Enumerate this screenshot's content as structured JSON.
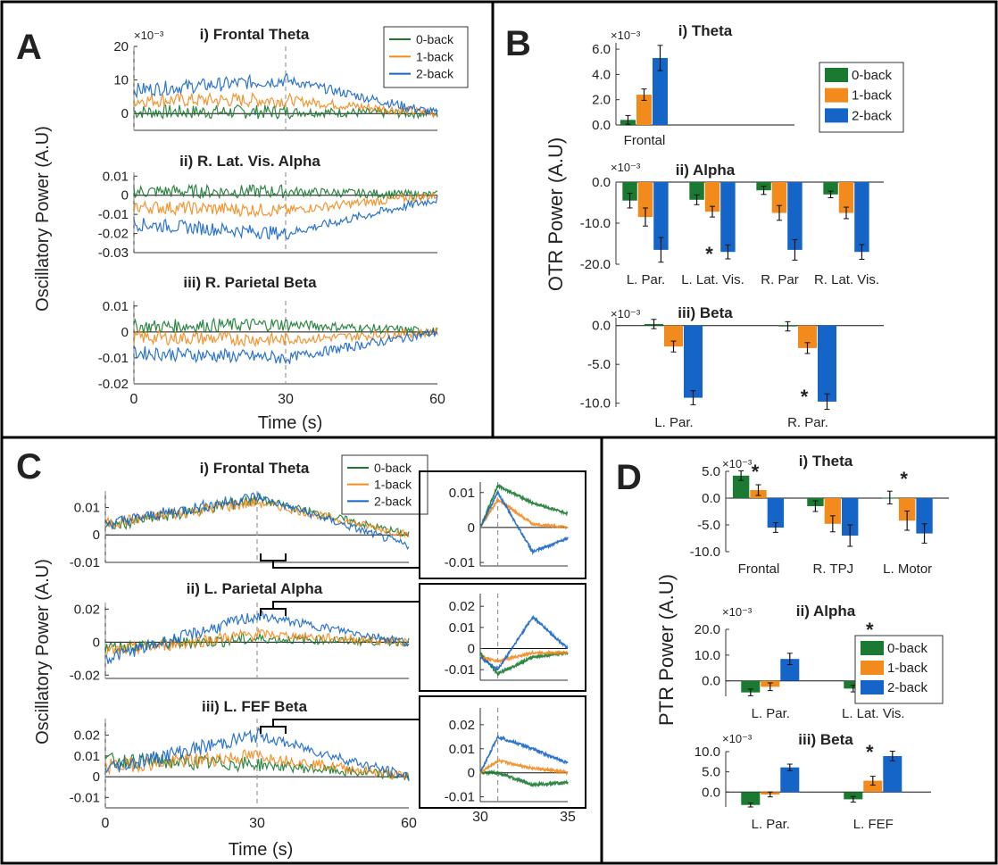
{
  "panels": {
    "A": {
      "letter": "A",
      "xlabel": "Time (s)",
      "ylabel": "Oscillatory Power (A.U)"
    },
    "B": {
      "letter": "B",
      "ylabel": "OTR Power (A.U)"
    },
    "C": {
      "letter": "C",
      "xlabel": "Time (s)",
      "ylabel": "Oscillatory Power (A.U)"
    },
    "D": {
      "letter": "D",
      "ylabel": "PTR Power (A.U)"
    }
  },
  "legend": [
    "0-back",
    "1-back",
    "2-back"
  ],
  "colors": {
    "0-back": "#1a7a32",
    "1-back": "#f28a1c",
    "2-back": "#1565c8"
  },
  "chart_data": [
    {
      "id": "A-i",
      "panel": "A",
      "type": "line",
      "title": "i) Frontal Theta",
      "exponent": "×10⁻³",
      "xlim": [
        0,
        60
      ],
      "ylim": [
        -5,
        20
      ],
      "yticks": [
        "0",
        "10",
        "20"
      ],
      "xticks": [],
      "series": [
        {
          "name": "0-back",
          "values": [
            0.5,
            0.5,
            0
          ]
        },
        {
          "name": "1-back",
          "values": [
            4,
            4,
            0
          ]
        },
        {
          "name": "2-back",
          "values": [
            7,
            10,
            0
          ]
        }
      ],
      "x": [
        0,
        30,
        60
      ]
    },
    {
      "id": "A-ii",
      "panel": "A",
      "type": "line",
      "title": "ii) R. Lat. Vis. Alpha",
      "xlim": [
        0,
        60
      ],
      "ylim": [
        -0.03,
        0.012
      ],
      "yticks": [
        "0.01",
        "0",
        "-0.01",
        "-0.02",
        "-0.03"
      ],
      "xticks": [],
      "series": [
        {
          "name": "0-back",
          "values": [
            0.002,
            0.002,
            0
          ]
        },
        {
          "name": "1-back",
          "values": [
            -0.006,
            -0.008,
            0
          ]
        },
        {
          "name": "2-back",
          "values": [
            -0.015,
            -0.02,
            -0.002
          ]
        }
      ],
      "x": [
        0,
        30,
        60
      ]
    },
    {
      "id": "A-iii",
      "panel": "A",
      "type": "line",
      "title": "iii) R. Parietal Beta",
      "xlim": [
        0,
        60
      ],
      "ylim": [
        -0.02,
        0.012
      ],
      "yticks": [
        "0.01",
        "0",
        "-0.01",
        "-0.02"
      ],
      "xticks": [
        "0",
        "30",
        "60"
      ],
      "series": [
        {
          "name": "0-back",
          "values": [
            0.002,
            0.003,
            0
          ]
        },
        {
          "name": "1-back",
          "values": [
            -0.002,
            -0.003,
            0
          ]
        },
        {
          "name": "2-back",
          "values": [
            -0.008,
            -0.01,
            0
          ]
        }
      ],
      "x": [
        0,
        30,
        60
      ]
    },
    {
      "id": "B-i",
      "panel": "B",
      "type": "bar",
      "title": "i) Theta",
      "exponent": "×10⁻³",
      "categories": [
        "Frontal"
      ],
      "ylim": [
        0,
        6.5
      ],
      "yticks": [
        "6.0",
        "4.0",
        "2.0",
        "0.0"
      ],
      "series": [
        {
          "name": "0-back",
          "values": [
            0.4
          ],
          "err": [
            0.35
          ]
        },
        {
          "name": "1-back",
          "values": [
            2.4
          ],
          "err": [
            0.45
          ]
        },
        {
          "name": "2-back",
          "values": [
            5.3
          ],
          "err": [
            1.0
          ]
        }
      ],
      "sig": [
        1
      ]
    },
    {
      "id": "B-ii",
      "panel": "B",
      "type": "bar",
      "title": "ii) Alpha",
      "exponent": "×10⁻³",
      "categories": [
        "L. Par.",
        "L. Lat. Vis.",
        "R. Par",
        "R. Lat. Vis."
      ],
      "ylim": [
        -20,
        0
      ],
      "yticks": [
        "0.0",
        "-10.0",
        "-20.0"
      ],
      "series": [
        {
          "name": "0-back",
          "values": [
            -4.5,
            -4.3,
            -2.0,
            -3.0
          ],
          "err": [
            1.8,
            1.2,
            1.0,
            0.8
          ]
        },
        {
          "name": "1-back",
          "values": [
            -8.5,
            -7.2,
            -7.5,
            -7.5
          ],
          "err": [
            2.2,
            1.3,
            1.8,
            1.4
          ]
        },
        {
          "name": "2-back",
          "values": [
            -16.5,
            -17.0,
            -16.5,
            -17.0
          ],
          "err": [
            3.0,
            1.7,
            2.5,
            1.8
          ]
        }
      ],
      "sig": [
        1,
        1,
        1,
        1
      ]
    },
    {
      "id": "B-iii",
      "panel": "B",
      "type": "bar",
      "title": "iii) Beta",
      "exponent": "×10⁻³",
      "categories": [
        "L. Par.",
        "R. Par."
      ],
      "ylim": [
        -10.5,
        1
      ],
      "yticks": [
        "0.0",
        "-5.0",
        "-10.0"
      ],
      "series": [
        {
          "name": "0-back",
          "values": [
            0.2,
            -0.1
          ],
          "err": [
            0.6,
            0.6
          ]
        },
        {
          "name": "1-back",
          "values": [
            -2.7,
            -2.9
          ],
          "err": [
            0.7,
            0.7
          ]
        },
        {
          "name": "2-back",
          "values": [
            -9.3,
            -9.8
          ],
          "err": [
            0.9,
            1.0
          ]
        }
      ],
      "sig": [
        1,
        1
      ]
    },
    {
      "id": "C-i",
      "panel": "C",
      "type": "line",
      "title": "i) Frontal Theta",
      "xlim": [
        0,
        60
      ],
      "ylim": [
        -0.01,
        0.016
      ],
      "yticks": [
        "0.01",
        "0",
        "-0.01"
      ],
      "xticks": [],
      "series": [
        {
          "name": "0-back",
          "values": [
            0.003,
            0.013,
            0
          ]
        },
        {
          "name": "1-back",
          "values": [
            0.004,
            0.012,
            0
          ]
        },
        {
          "name": "2-back",
          "values": [
            0.004,
            0.014,
            -0.004
          ]
        }
      ],
      "x": [
        0,
        30,
        60
      ]
    },
    {
      "id": "C-ii",
      "panel": "C",
      "type": "line",
      "title": "ii) L. Parietal Alpha",
      "xlim": [
        0,
        60
      ],
      "ylim": [
        -0.022,
        0.024
      ],
      "yticks": [
        "0.02",
        "0",
        "-0.02"
      ],
      "xticks": [],
      "series": [
        {
          "name": "0-back",
          "values": [
            -0.003,
            0.002,
            0
          ]
        },
        {
          "name": "1-back",
          "values": [
            -0.006,
            0.005,
            0
          ]
        },
        {
          "name": "2-back",
          "values": [
            -0.01,
            0.016,
            0
          ]
        }
      ],
      "x": [
        0,
        30,
        60
      ]
    },
    {
      "id": "C-iii",
      "panel": "C",
      "type": "line",
      "title": "iii) L. FEF Beta",
      "xlim": [
        0,
        60
      ],
      "ylim": [
        -0.015,
        0.028
      ],
      "yticks": [
        "0.02",
        "0.01",
        "0",
        "-0.01"
      ],
      "xticks": [
        "0",
        "30",
        "60"
      ],
      "series": [
        {
          "name": "0-back",
          "values": [
            0.008,
            0.006,
            0
          ]
        },
        {
          "name": "1-back",
          "values": [
            0.005,
            0.01,
            0
          ]
        },
        {
          "name": "2-back",
          "values": [
            0.004,
            0.02,
            0
          ]
        }
      ],
      "x": [
        0,
        30,
        60
      ]
    },
    {
      "id": "C-i-zoom",
      "panel": "C",
      "type": "line",
      "title": "",
      "xlim": [
        30,
        35
      ],
      "ylim": [
        -0.011,
        0.013
      ],
      "yticks": [
        "0.01",
        "0",
        "-0.01"
      ],
      "xticks": [],
      "series": [
        {
          "name": "0-back",
          "values": [
            0.0,
            0.012,
            0.007,
            0.004
          ]
        },
        {
          "name": "1-back",
          "values": [
            0.0,
            0.008,
            0.001,
            0.0
          ]
        },
        {
          "name": "2-back",
          "values": [
            0.0,
            0.01,
            -0.007,
            -0.003
          ]
        }
      ],
      "x": [
        30,
        31,
        33,
        35
      ]
    },
    {
      "id": "C-ii-zoom",
      "panel": "C",
      "type": "line",
      "title": "",
      "xlim": [
        30,
        35
      ],
      "ylim": [
        -0.015,
        0.026
      ],
      "yticks": [
        "0.02",
        "0.01",
        "0",
        "-0.01"
      ],
      "xticks": [],
      "series": [
        {
          "name": "0-back",
          "values": [
            -0.002,
            -0.012,
            -0.004,
            -0.002
          ]
        },
        {
          "name": "1-back",
          "values": [
            -0.004,
            -0.006,
            -0.002,
            -0.002
          ]
        },
        {
          "name": "2-back",
          "values": [
            -0.004,
            -0.01,
            0.015,
            0.0
          ]
        }
      ],
      "x": [
        30,
        31,
        33,
        35
      ]
    },
    {
      "id": "C-iii-zoom",
      "panel": "C",
      "type": "line",
      "title": "",
      "xlim": [
        30,
        35
      ],
      "ylim": [
        -0.012,
        0.027
      ],
      "yticks": [
        "0.02",
        "0.01",
        "0",
        "-0.01"
      ],
      "xticks": [
        "30",
        "35"
      ],
      "series": [
        {
          "name": "0-back",
          "values": [
            0.0,
            0.0,
            -0.005,
            -0.004
          ]
        },
        {
          "name": "1-back",
          "values": [
            0.0,
            0.005,
            0.002,
            0.0
          ]
        },
        {
          "name": "2-back",
          "values": [
            0.0,
            0.015,
            0.01,
            0.004
          ]
        }
      ],
      "x": [
        30,
        31,
        33,
        35
      ]
    },
    {
      "id": "D-i",
      "panel": "D",
      "type": "bar",
      "title": "i) Theta",
      "exponent": "×10⁻³",
      "categories": [
        "Frontal",
        "R. TPJ",
        "L. Motor"
      ],
      "ylim": [
        -10,
        5
      ],
      "yticks": [
        "5.0",
        "0.0",
        "-5.0",
        "-10.0"
      ],
      "series": [
        {
          "name": "0-back",
          "values": [
            4.2,
            -1.5,
            0.1
          ],
          "err": [
            0.9,
            1.0,
            1.2
          ]
        },
        {
          "name": "1-back",
          "values": [
            1.5,
            -4.8,
            -4.2
          ],
          "err": [
            1.0,
            1.5,
            1.8
          ]
        },
        {
          "name": "2-back",
          "values": [
            -5.5,
            -7.0,
            -6.6
          ],
          "err": [
            0.9,
            2.0,
            1.8
          ]
        }
      ],
      "sig": [
        0,
        2
      ]
    },
    {
      "id": "D-ii",
      "panel": "D",
      "type": "bar",
      "title": "ii) Alpha",
      "exponent": "×10⁻³",
      "categories": [
        "L. Par.",
        "L. Lat. Vis."
      ],
      "ylim": [
        -6,
        20
      ],
      "yticks": [
        "20.0",
        "10.0",
        "0.0"
      ],
      "series": [
        {
          "name": "0-back",
          "values": [
            -4.5,
            -3.0
          ],
          "err": [
            1.3,
            1.3
          ]
        },
        {
          "name": "1-back",
          "values": [
            -2.3,
            2.0
          ],
          "err": [
            1.5,
            1.6
          ]
        },
        {
          "name": "2-back",
          "values": [
            8.5,
            13.7
          ],
          "err": [
            2.2,
            2.5
          ]
        }
      ],
      "sig": [
        1,
        1
      ]
    },
    {
      "id": "D-iii",
      "panel": "D",
      "type": "bar",
      "title": "iii) Beta",
      "exponent": "×10⁻³",
      "categories": [
        "L. Par.",
        "L. FEF"
      ],
      "ylim": [
        -3.7,
        10
      ],
      "yticks": [
        "10.0",
        "5.0",
        "0.0"
      ],
      "series": [
        {
          "name": "0-back",
          "values": [
            -3.2,
            -1.8
          ],
          "err": [
            0.5,
            0.7
          ]
        },
        {
          "name": "1-back",
          "values": [
            -0.6,
            2.8
          ],
          "err": [
            0.6,
            1.1
          ]
        },
        {
          "name": "2-back",
          "values": [
            6.1,
            8.9
          ],
          "err": [
            0.8,
            1.2
          ]
        }
      ],
      "sig": [
        1,
        1
      ]
    }
  ]
}
